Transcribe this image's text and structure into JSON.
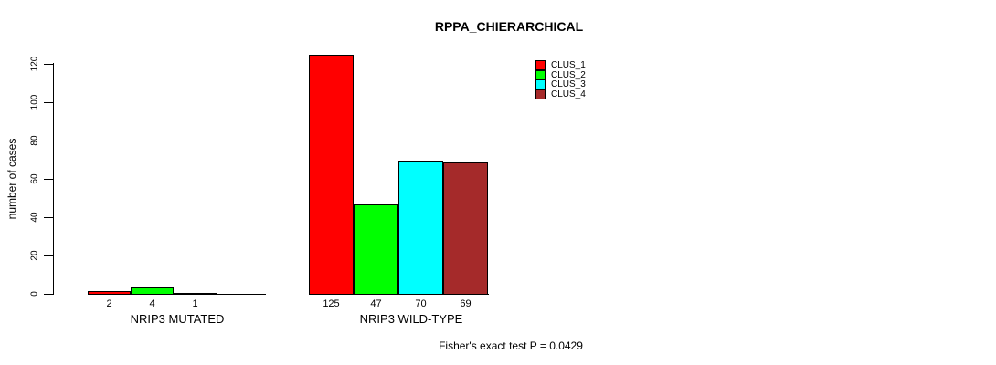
{
  "title": "RPPA_CHIERARCHICAL",
  "footer": "Fisher's exact test P = 0.0429",
  "chart_data": {
    "type": "bar",
    "title": "RPPA_CHIERARCHICAL",
    "xlabel": "",
    "ylabel": "number of cases",
    "ylim": [
      0,
      120
    ],
    "yticks": [
      0,
      20,
      40,
      60,
      80,
      100,
      120
    ],
    "grid": false,
    "legend_position": "top-right",
    "categories": [
      "NRIP3 MUTATED",
      "NRIP3 WILD-TYPE"
    ],
    "series": [
      {
        "name": "CLUS_1",
        "color": "#FF0000",
        "values": [
          2,
          125
        ]
      },
      {
        "name": "CLUS_2",
        "color": "#00FF00",
        "values": [
          4,
          47
        ]
      },
      {
        "name": "CLUS_3",
        "color": "#00FFFF",
        "values": [
          1,
          70
        ]
      },
      {
        "name": "CLUS_4",
        "color": "#A52A2A",
        "values": [
          0,
          69
        ]
      }
    ],
    "bar_value_labels": [
      [
        "2",
        "4",
        "1",
        ""
      ],
      [
        "125",
        "47",
        "70",
        "69"
      ]
    ],
    "annotation": "Fisher's exact test P = 0.0429"
  }
}
